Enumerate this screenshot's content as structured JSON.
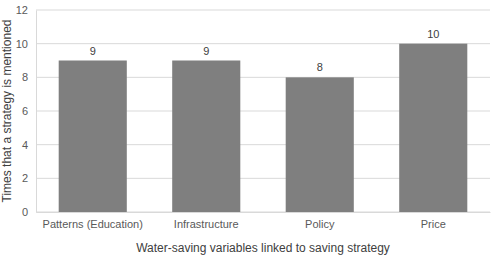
{
  "chart_data": {
    "type": "bar",
    "x_label": "Water-saving variables linked to saving strategy",
    "y_label": "Times that a strategy is mentioned",
    "categories": [
      "Patterns (Education)",
      "Infrastructure",
      "Policy",
      "Price"
    ],
    "values": [
      9,
      9,
      8,
      10
    ],
    "color": "#7f7f7f",
    "ylim": [
      0,
      12
    ],
    "yticks": [
      0,
      2,
      4,
      6,
      8,
      10,
      12
    ],
    "grid": true,
    "data_labels": true
  }
}
